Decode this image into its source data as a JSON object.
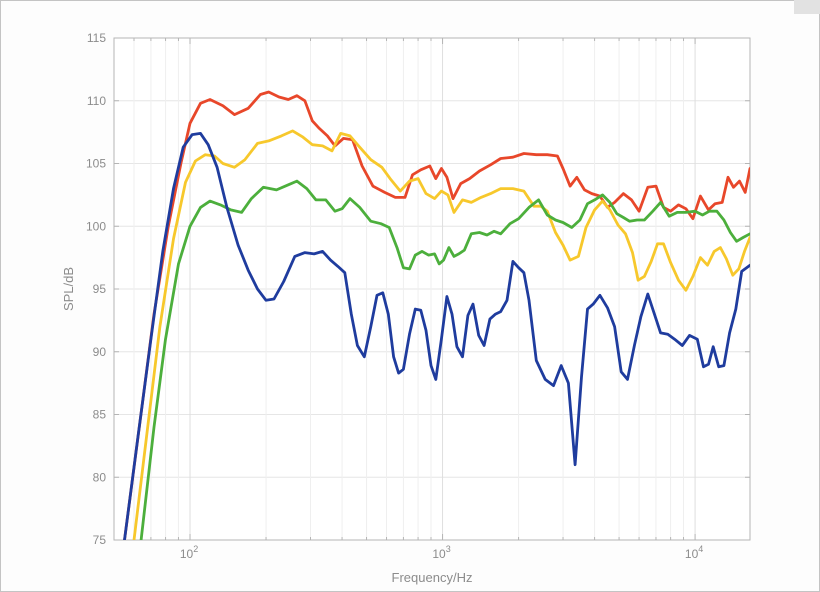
{
  "chart_data": {
    "type": "line",
    "title": "",
    "xlabel": "Frequency/Hz",
    "ylabel": "SPL/dB",
    "xscale": "log",
    "xlim": [
      50,
      16500
    ],
    "ylim": [
      75,
      115
    ],
    "grid": true,
    "legend": "none",
    "x_tick_values": [
      100,
      1000,
      10000
    ],
    "x_tick_labels": [
      {
        "base": "10",
        "exp": "2"
      },
      {
        "base": "10",
        "exp": "3"
      },
      {
        "base": "10",
        "exp": "4"
      }
    ],
    "y_ticks": [
      75,
      80,
      85,
      90,
      95,
      100,
      105,
      110,
      115
    ],
    "y_tick_labels": [
      "75",
      "80",
      "85",
      "90",
      "95",
      "100",
      "105",
      "110",
      "115"
    ],
    "series": [
      {
        "color": "#e8472a",
        "points": [
          [
            55,
            75
          ],
          [
            63,
            84
          ],
          [
            72,
            93
          ],
          [
            82,
            100
          ],
          [
            92,
            105
          ],
          [
            100,
            108.2
          ],
          [
            110,
            109.8
          ],
          [
            120,
            110.1
          ],
          [
            135,
            109.6
          ],
          [
            150,
            108.9
          ],
          [
            170,
            109.4
          ],
          [
            190,
            110.5
          ],
          [
            205,
            110.7
          ],
          [
            225,
            110.3
          ],
          [
            245,
            110.1
          ],
          [
            265,
            110.4
          ],
          [
            285,
            110
          ],
          [
            305,
            108.4
          ],
          [
            325,
            107.8
          ],
          [
            350,
            107.2
          ],
          [
            375,
            106.4
          ],
          [
            405,
            107
          ],
          [
            440,
            106.9
          ],
          [
            480,
            104.8
          ],
          [
            530,
            103.2
          ],
          [
            590,
            102.7
          ],
          [
            650,
            102.3
          ],
          [
            710,
            102.3
          ],
          [
            760,
            104.1
          ],
          [
            820,
            104.5
          ],
          [
            890,
            104.8
          ],
          [
            940,
            103.8
          ],
          [
            990,
            104.6
          ],
          [
            1040,
            103.9
          ],
          [
            1100,
            102.2
          ],
          [
            1180,
            103.4
          ],
          [
            1280,
            103.8
          ],
          [
            1400,
            104.4
          ],
          [
            1550,
            104.9
          ],
          [
            1700,
            105.4
          ],
          [
            1900,
            105.5
          ],
          [
            2100,
            105.8
          ],
          [
            2350,
            105.7
          ],
          [
            2600,
            105.7
          ],
          [
            2850,
            105.6
          ],
          [
            3000,
            104.6
          ],
          [
            3200,
            103.2
          ],
          [
            3400,
            103.9
          ],
          [
            3650,
            102.9
          ],
          [
            3900,
            102.6
          ],
          [
            4200,
            102.4
          ],
          [
            4500,
            101.5
          ],
          [
            4800,
            101.9
          ],
          [
            5200,
            102.6
          ],
          [
            5600,
            102.1
          ],
          [
            6000,
            101.2
          ],
          [
            6500,
            103.1
          ],
          [
            7000,
            103.2
          ],
          [
            7500,
            101.5
          ],
          [
            8000,
            101.2
          ],
          [
            8600,
            101.7
          ],
          [
            9200,
            101.4
          ],
          [
            9800,
            100.6
          ],
          [
            10500,
            102.4
          ],
          [
            11300,
            101.3
          ],
          [
            12000,
            101.8
          ],
          [
            12800,
            101.9
          ],
          [
            13500,
            103.9
          ],
          [
            14200,
            103.1
          ],
          [
            15000,
            103.6
          ],
          [
            15800,
            102.7
          ],
          [
            16500,
            104.6
          ]
        ]
      },
      {
        "color": "#f7c82c",
        "points": [
          [
            60,
            75
          ],
          [
            68,
            84
          ],
          [
            76,
            92
          ],
          [
            86,
            99
          ],
          [
            96,
            103.5
          ],
          [
            105,
            105.2
          ],
          [
            115,
            105.7
          ],
          [
            125,
            105.6
          ],
          [
            135,
            105
          ],
          [
            150,
            104.7
          ],
          [
            165,
            105.3
          ],
          [
            185,
            106.6
          ],
          [
            205,
            106.8
          ],
          [
            230,
            107.2
          ],
          [
            255,
            107.6
          ],
          [
            280,
            107.1
          ],
          [
            305,
            106.5
          ],
          [
            335,
            106.4
          ],
          [
            365,
            106
          ],
          [
            395,
            107.4
          ],
          [
            430,
            107.2
          ],
          [
            470,
            106.3
          ],
          [
            520,
            105.3
          ],
          [
            575,
            104.7
          ],
          [
            620,
            103.8
          ],
          [
            680,
            102.8
          ],
          [
            740,
            103.6
          ],
          [
            800,
            103.8
          ],
          [
            860,
            102.6
          ],
          [
            930,
            102.2
          ],
          [
            990,
            102.8
          ],
          [
            1050,
            102.5
          ],
          [
            1110,
            101.1
          ],
          [
            1200,
            102.1
          ],
          [
            1300,
            101.9
          ],
          [
            1420,
            102.3
          ],
          [
            1550,
            102.6
          ],
          [
            1700,
            103
          ],
          [
            1900,
            103
          ],
          [
            2100,
            102.8
          ],
          [
            2300,
            101.6
          ],
          [
            2450,
            101.6
          ],
          [
            2600,
            101.2
          ],
          [
            2800,
            99.5
          ],
          [
            3000,
            98.5
          ],
          [
            3200,
            97.3
          ],
          [
            3450,
            97.6
          ],
          [
            3700,
            99.9
          ],
          [
            4000,
            101.3
          ],
          [
            4300,
            102
          ],
          [
            4600,
            101.3
          ],
          [
            4950,
            100.1
          ],
          [
            5300,
            99.4
          ],
          [
            5650,
            97.9
          ],
          [
            5950,
            95.7
          ],
          [
            6300,
            96
          ],
          [
            6700,
            97.2
          ],
          [
            7100,
            98.6
          ],
          [
            7500,
            98.6
          ],
          [
            8000,
            97.1
          ],
          [
            8600,
            95.7
          ],
          [
            9200,
            94.9
          ],
          [
            9800,
            96
          ],
          [
            10500,
            97.5
          ],
          [
            11200,
            96.9
          ],
          [
            11900,
            98
          ],
          [
            12600,
            98.3
          ],
          [
            13300,
            97.4
          ],
          [
            14100,
            96.1
          ],
          [
            14900,
            96.6
          ],
          [
            15700,
            98
          ],
          [
            16500,
            99.1
          ]
        ]
      },
      {
        "color": "#4caf3c",
        "points": [
          [
            64,
            75
          ],
          [
            72,
            84
          ],
          [
            80,
            91
          ],
          [
            90,
            97
          ],
          [
            100,
            100
          ],
          [
            110,
            101.5
          ],
          [
            120,
            102
          ],
          [
            132,
            101.7
          ],
          [
            145,
            101.3
          ],
          [
            160,
            101.1
          ],
          [
            175,
            102.2
          ],
          [
            195,
            103.1
          ],
          [
            220,
            102.9
          ],
          [
            245,
            103.3
          ],
          [
            265,
            103.6
          ],
          [
            290,
            103
          ],
          [
            315,
            102.1
          ],
          [
            345,
            102.1
          ],
          [
            375,
            101.2
          ],
          [
            400,
            101.4
          ],
          [
            430,
            102.2
          ],
          [
            470,
            101.5
          ],
          [
            520,
            100.4
          ],
          [
            570,
            100.2
          ],
          [
            615,
            99.9
          ],
          [
            660,
            98.3
          ],
          [
            700,
            96.7
          ],
          [
            740,
            96.6
          ],
          [
            780,
            97.7
          ],
          [
            830,
            98
          ],
          [
            880,
            97.7
          ],
          [
            930,
            97.8
          ],
          [
            970,
            97
          ],
          [
            1010,
            97.3
          ],
          [
            1060,
            98.3
          ],
          [
            1110,
            97.6
          ],
          [
            1160,
            97.8
          ],
          [
            1220,
            98.1
          ],
          [
            1300,
            99.4
          ],
          [
            1400,
            99.5
          ],
          [
            1500,
            99.3
          ],
          [
            1600,
            99.6
          ],
          [
            1700,
            99.4
          ],
          [
            1850,
            100.2
          ],
          [
            2000,
            100.6
          ],
          [
            2200,
            101.5
          ],
          [
            2400,
            102.1
          ],
          [
            2600,
            100.9
          ],
          [
            2800,
            100.5
          ],
          [
            3000,
            100.3
          ],
          [
            3250,
            99.9
          ],
          [
            3500,
            100.5
          ],
          [
            3750,
            101.8
          ],
          [
            4000,
            102.1
          ],
          [
            4300,
            102.5
          ],
          [
            4600,
            101.9
          ],
          [
            4900,
            101
          ],
          [
            5200,
            100.7
          ],
          [
            5500,
            100.4
          ],
          [
            5900,
            100.5
          ],
          [
            6300,
            100.5
          ],
          [
            6800,
            101.2
          ],
          [
            7300,
            101.9
          ],
          [
            7900,
            100.8
          ],
          [
            8500,
            101.1
          ],
          [
            9200,
            101.1
          ],
          [
            10000,
            101.2
          ],
          [
            10700,
            100.9
          ],
          [
            11400,
            101.2
          ],
          [
            12200,
            101.2
          ],
          [
            13000,
            100.5
          ],
          [
            13800,
            99.5
          ],
          [
            14600,
            98.8
          ],
          [
            15500,
            99.1
          ],
          [
            16500,
            99.4
          ]
        ]
      },
      {
        "color": "#1f3c9e",
        "points": [
          [
            55,
            75
          ],
          [
            62,
            83
          ],
          [
            70,
            91
          ],
          [
            78,
            98
          ],
          [
            86,
            103
          ],
          [
            94,
            106.3
          ],
          [
            102,
            107.3
          ],
          [
            110,
            107.4
          ],
          [
            118,
            106.5
          ],
          [
            128,
            104.7
          ],
          [
            140,
            101.5
          ],
          [
            155,
            98.5
          ],
          [
            170,
            96.5
          ],
          [
            185,
            95
          ],
          [
            200,
            94.1
          ],
          [
            215,
            94.2
          ],
          [
            235,
            95.6
          ],
          [
            260,
            97.6
          ],
          [
            285,
            97.9
          ],
          [
            310,
            97.8
          ],
          [
            335,
            98
          ],
          [
            360,
            97.3
          ],
          [
            385,
            96.8
          ],
          [
            410,
            96.3
          ],
          [
            435,
            93
          ],
          [
            460,
            90.5
          ],
          [
            490,
            89.6
          ],
          [
            520,
            92
          ],
          [
            550,
            94.5
          ],
          [
            580,
            94.7
          ],
          [
            610,
            93
          ],
          [
            640,
            89.6
          ],
          [
            670,
            88.3
          ],
          [
            700,
            88.6
          ],
          [
            740,
            91.4
          ],
          [
            780,
            93.4
          ],
          [
            820,
            93.3
          ],
          [
            860,
            91.7
          ],
          [
            900,
            88.9
          ],
          [
            940,
            87.8
          ],
          [
            990,
            91
          ],
          [
            1040,
            94.4
          ],
          [
            1090,
            93
          ],
          [
            1140,
            90.4
          ],
          [
            1200,
            89.6
          ],
          [
            1260,
            92.9
          ],
          [
            1320,
            93.8
          ],
          [
            1390,
            91.3
          ],
          [
            1460,
            90.5
          ],
          [
            1540,
            92.6
          ],
          [
            1620,
            93
          ],
          [
            1700,
            93.2
          ],
          [
            1800,
            94.1
          ],
          [
            1900,
            97.2
          ],
          [
            2000,
            96.7
          ],
          [
            2100,
            96.3
          ],
          [
            2200,
            94.1
          ],
          [
            2350,
            89.3
          ],
          [
            2550,
            87.8
          ],
          [
            2750,
            87.3
          ],
          [
            2950,
            88.9
          ],
          [
            3150,
            87.5
          ],
          [
            3350,
            81
          ],
          [
            3550,
            88
          ],
          [
            3750,
            93.4
          ],
          [
            3950,
            93.8
          ],
          [
            4200,
            94.5
          ],
          [
            4500,
            93.5
          ],
          [
            4800,
            92
          ],
          [
            5100,
            88.4
          ],
          [
            5400,
            87.8
          ],
          [
            5750,
            90.5
          ],
          [
            6100,
            92.8
          ],
          [
            6500,
            94.6
          ],
          [
            6900,
            93
          ],
          [
            7300,
            91.5
          ],
          [
            7800,
            91.4
          ],
          [
            8300,
            91
          ],
          [
            8900,
            90.5
          ],
          [
            9500,
            91.3
          ],
          [
            10200,
            91
          ],
          [
            10800,
            88.8
          ],
          [
            11300,
            89
          ],
          [
            11800,
            90.4
          ],
          [
            12400,
            88.8
          ],
          [
            13000,
            88.9
          ],
          [
            13700,
            91.5
          ],
          [
            14500,
            93.4
          ],
          [
            15300,
            96.4
          ],
          [
            16500,
            96.9
          ]
        ]
      }
    ]
  }
}
